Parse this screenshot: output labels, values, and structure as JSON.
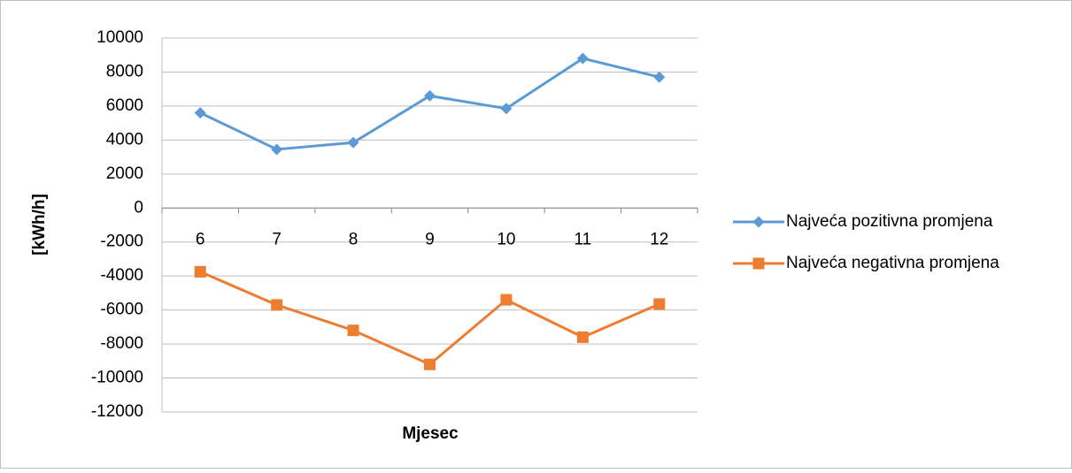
{
  "chart_data": {
    "type": "line",
    "categories": [
      "6",
      "7",
      "8",
      "9",
      "10",
      "11",
      "12"
    ],
    "series": [
      {
        "name": "Najveća pozitivna promjena",
        "color": "#5b9bd5",
        "marker": "diamond",
        "values": [
          5600,
          3450,
          3850,
          6600,
          5850,
          8800,
          7700
        ]
      },
      {
        "name": "Najveća negativna promjena",
        "color": "#ed7d31",
        "marker": "square",
        "values": [
          -3750,
          -5700,
          -7200,
          -9200,
          -5400,
          -7600,
          -5650
        ]
      }
    ],
    "ylim": [
      -12000,
      10000
    ],
    "yticks": [
      -12000,
      -10000,
      -8000,
      -6000,
      -4000,
      -2000,
      0,
      2000,
      4000,
      6000,
      8000,
      10000
    ],
    "y_label": "[kWh/h]",
    "x_label": "Mjesec",
    "grid": true,
    "legend": "right"
  }
}
